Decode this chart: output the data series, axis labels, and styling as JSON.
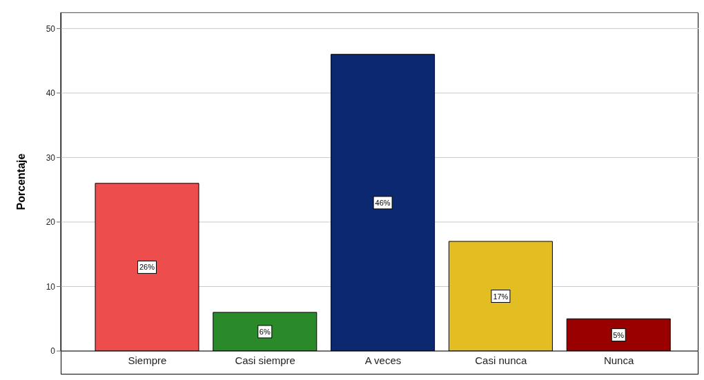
{
  "chart_data": {
    "type": "bar",
    "ylabel": "Porcentaje",
    "categories": [
      "Siempre",
      "Casi siempre",
      "A veces",
      "Casi nunca",
      "Nunca"
    ],
    "values": [
      26,
      6,
      46,
      17,
      5
    ],
    "colors": [
      "#ed4d4d",
      "#2a8a2a",
      "#0c2870",
      "#e3be22",
      "#990000"
    ],
    "value_labels": [
      "26%",
      "6%",
      "46%",
      "17%",
      "5%"
    ],
    "ylim": [
      0,
      52.5
    ],
    "yticks": [
      0,
      10,
      20,
      30,
      40,
      50
    ],
    "grid": "y",
    "legend": false
  }
}
